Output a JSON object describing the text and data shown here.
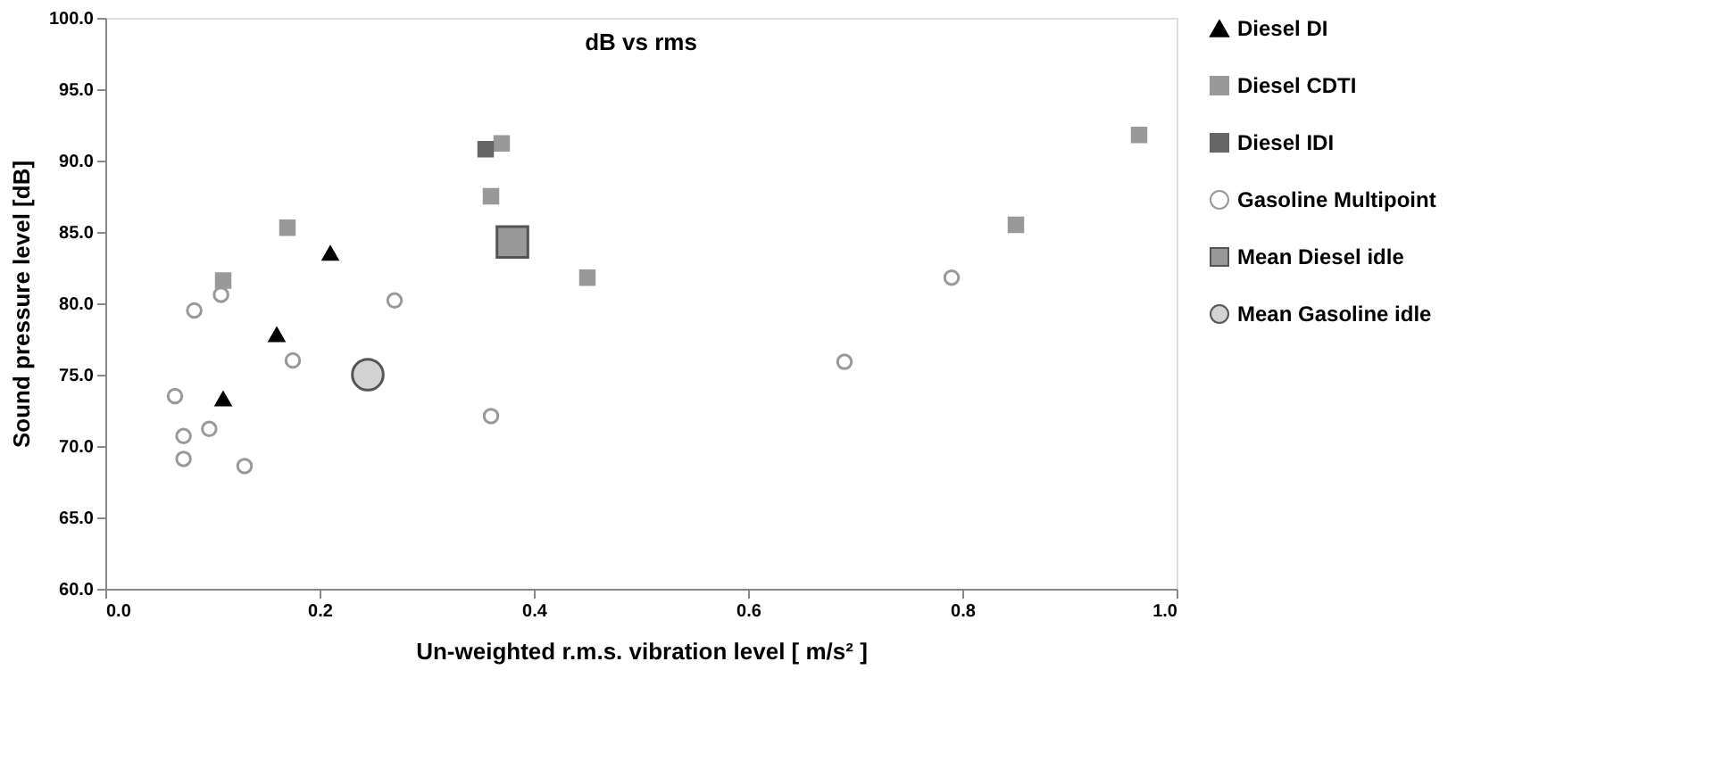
{
  "chart_data": {
    "type": "scatter",
    "title": "dB vs rms",
    "xlabel": "Un-weighted r.m.s. vibration level [ m/s² ]",
    "ylabel": "Sound pressure level [dB]",
    "xlim": [
      0,
      1
    ],
    "ylim": [
      60,
      100
    ],
    "xticks": [
      {
        "value": 0,
        "label": "0.0"
      },
      {
        "value": 0.2,
        "label": "0.2"
      },
      {
        "value": 0.4,
        "label": "0.4"
      },
      {
        "value": 0.6,
        "label": "0.6"
      },
      {
        "value": 0.8,
        "label": "0.8"
      },
      {
        "value": 1,
        "label": "1.0"
      }
    ],
    "yticks": [
      {
        "value": 60,
        "label": "60.0"
      },
      {
        "value": 65,
        "label": "65.0"
      },
      {
        "value": 70,
        "label": "70.0"
      },
      {
        "value": 75,
        "label": "75.0"
      },
      {
        "value": 80,
        "label": "80.0"
      },
      {
        "value": 85,
        "label": "85.0"
      },
      {
        "value": 90,
        "label": "90.0"
      },
      {
        "value": 95,
        "label": "95.0"
      },
      {
        "value": 100,
        "label": "100.0"
      }
    ],
    "grid": false,
    "legend": "right",
    "series": [
      {
        "name": "Diesel DI",
        "color": "#000000",
        "marker": "triangle",
        "x": [
          0.11,
          0.16,
          0.21
        ],
        "values": [
          73.3,
          77.8,
          83.5
        ]
      },
      {
        "name": "Diesel CDTI",
        "color": "#999999",
        "marker": "square",
        "x": [
          0.11,
          0.17,
          0.36,
          0.37,
          0.45,
          0.85,
          0.965
        ],
        "values": [
          81.6,
          85.3,
          87.5,
          91.2,
          81.8,
          85.5,
          91.8
        ]
      },
      {
        "name": "Diesel IDI",
        "color": "#666666",
        "marker": "square",
        "x": [
          0.355
        ],
        "values": [
          90.8
        ]
      },
      {
        "name": "Gasoline Multipoint",
        "color": "#ffffff",
        "marker": "circle",
        "x": [
          0.065,
          0.073,
          0.073,
          0.083,
          0.097,
          0.108,
          0.13,
          0.175,
          0.27,
          0.36,
          0.69,
          0.79
        ],
        "values": [
          73.5,
          70.7,
          69.1,
          79.5,
          71.2,
          80.6,
          68.6,
          76.0,
          80.2,
          72.1,
          75.9,
          81.8
        ]
      },
      {
        "name": "Mean Diesel idle",
        "color": "#999999",
        "marker": "square",
        "x": [
          0.38
        ],
        "values": [
          84.3
        ]
      },
      {
        "name": "Mean Gasoline idle",
        "color": "#d3d3d3",
        "marker": "circle",
        "x": [
          0.245
        ],
        "values": [
          75.0
        ]
      }
    ]
  }
}
